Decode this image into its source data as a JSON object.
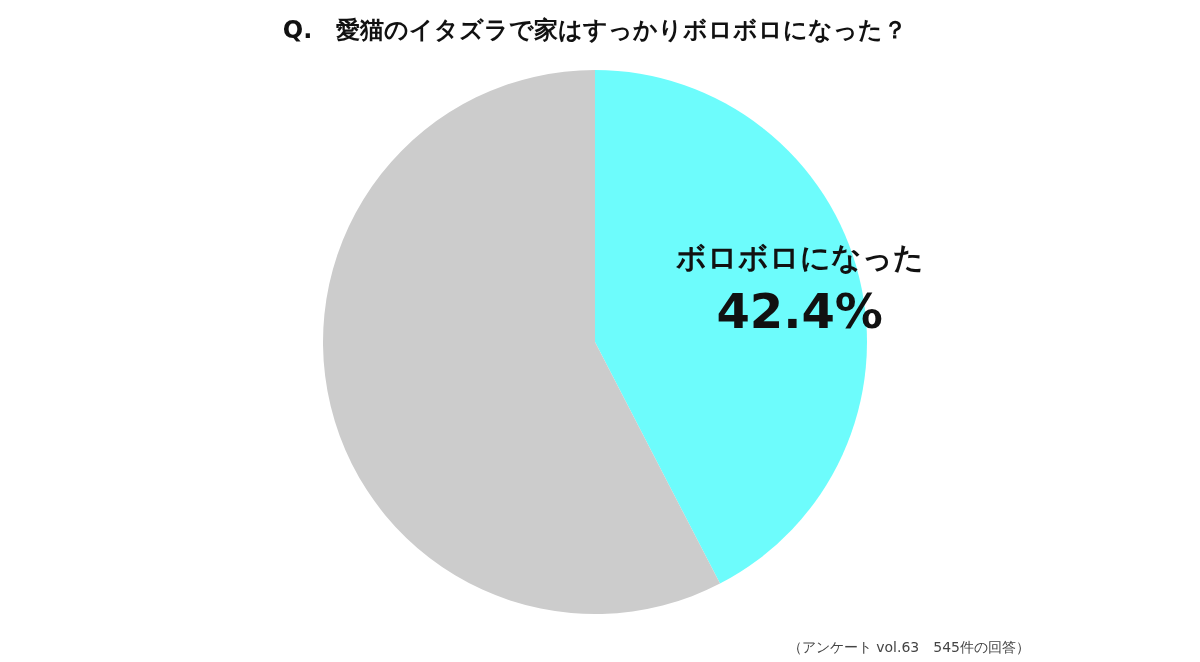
{
  "chart_data": {
    "type": "pie",
    "title": "Q.　愛猫のイタズラで家はすっかりボロボロになった？",
    "categories": [
      "ボロボロになった",
      null
    ],
    "values": [
      42.4,
      57.6
    ],
    "colors": [
      "#6dfcfc",
      "#cccccc"
    ],
    "value_labels": [
      "42.4%",
      null
    ],
    "annotations": [
      "（アンケート vol.63　545件の回答）"
    ]
  }
}
